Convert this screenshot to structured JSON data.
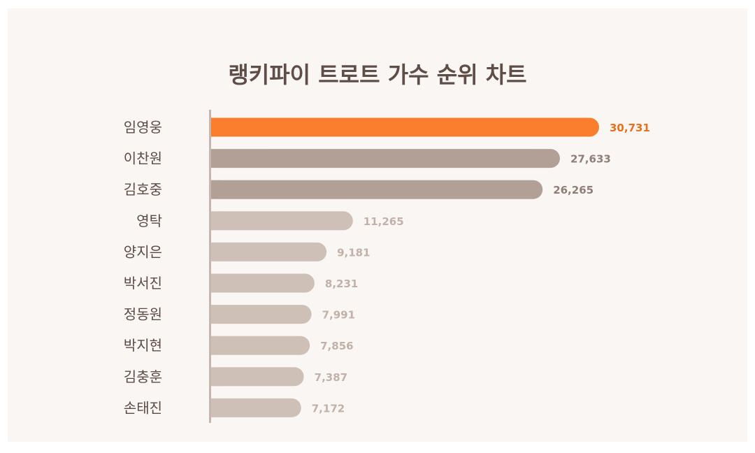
{
  "chart_data": {
    "type": "bar",
    "orientation": "horizontal",
    "title": "랭키파이 트로트 가수 순위 차트",
    "categories": [
      "임영웅",
      "이찬원",
      "김호중",
      "영탁",
      "양지은",
      "박서진",
      "정동원",
      "박지현",
      "김충훈",
      "손태진"
    ],
    "values": [
      30731,
      27633,
      26265,
      11265,
      9181,
      8231,
      7991,
      7856,
      7387,
      7172
    ],
    "value_labels": [
      "30,731",
      "27,633",
      "26,265",
      "11,265",
      "9,181",
      "8,231",
      "7,991",
      "7,856",
      "7,387",
      "7,172"
    ],
    "xlim": [
      0,
      30731
    ],
    "grid": false,
    "legend": "none",
    "colors": {
      "rank1": "#fb7d2e",
      "rank1_label": "#ec6f1d",
      "top3": "#b2a097",
      "top3_label": "#8f7e77",
      "rest": "#cfc0b7",
      "rest_label": "#c1b2a9",
      "axis": "#c6b7ae",
      "background": "#f9f6f4"
    }
  }
}
